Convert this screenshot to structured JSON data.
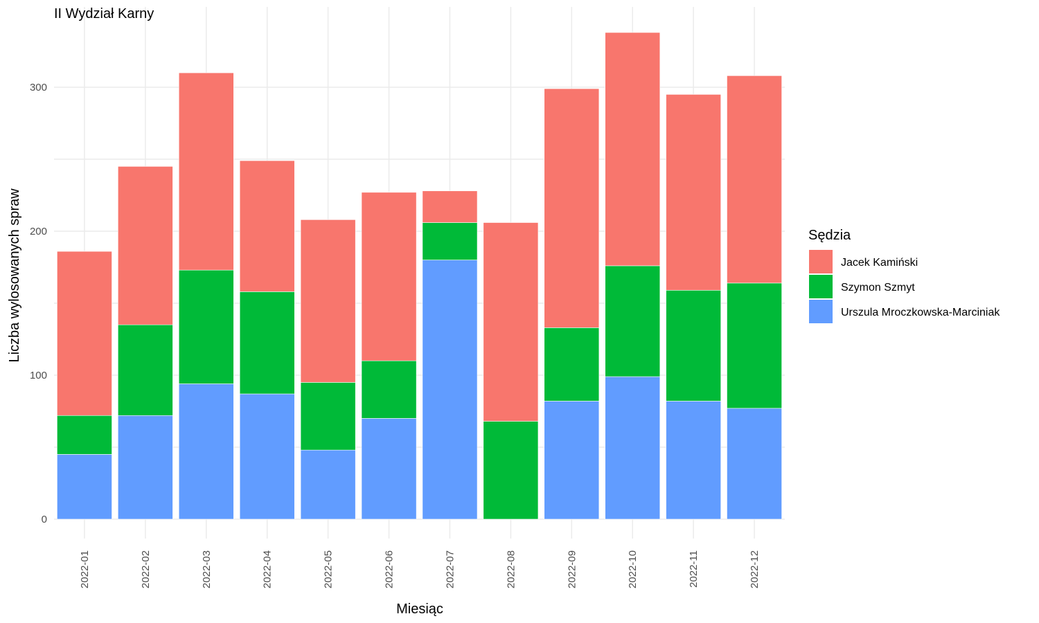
{
  "chart_data": {
    "type": "bar",
    "stacked": true,
    "title": "II Wydział Karny",
    "xlabel": "Miesiąc",
    "ylabel": "Liczba wylosowanych spraw",
    "ylim": [
      0,
      340
    ],
    "yticks": [
      0,
      100,
      200,
      300
    ],
    "grid": true,
    "legend": {
      "title": "Sędzia",
      "position": "right"
    },
    "categories": [
      "2022-01",
      "2022-02",
      "2022-03",
      "2022-04",
      "2022-05",
      "2022-06",
      "2022-07",
      "2022-08",
      "2022-09",
      "2022-10",
      "2022-11",
      "2022-12"
    ],
    "series": [
      {
        "name": "Urszula Mroczkowska-Marciniak",
        "color": "#619CFF",
        "values": [
          45,
          72,
          94,
          87,
          48,
          70,
          180,
          0,
          82,
          99,
          82,
          77
        ]
      },
      {
        "name": "Szymon Szmyt",
        "color": "#00BA38",
        "values": [
          27,
          63,
          79,
          71,
          47,
          40,
          26,
          68,
          51,
          77,
          77,
          87
        ]
      },
      {
        "name": "Jacek Kamiński",
        "color": "#F8766D",
        "values": [
          114,
          110,
          137,
          91,
          113,
          117,
          22,
          138,
          166,
          162,
          136,
          144
        ]
      }
    ],
    "legend_order": [
      "Jacek Kamiński",
      "Szymon Szmyt",
      "Urszula Mroczkowska-Marciniak"
    ]
  }
}
